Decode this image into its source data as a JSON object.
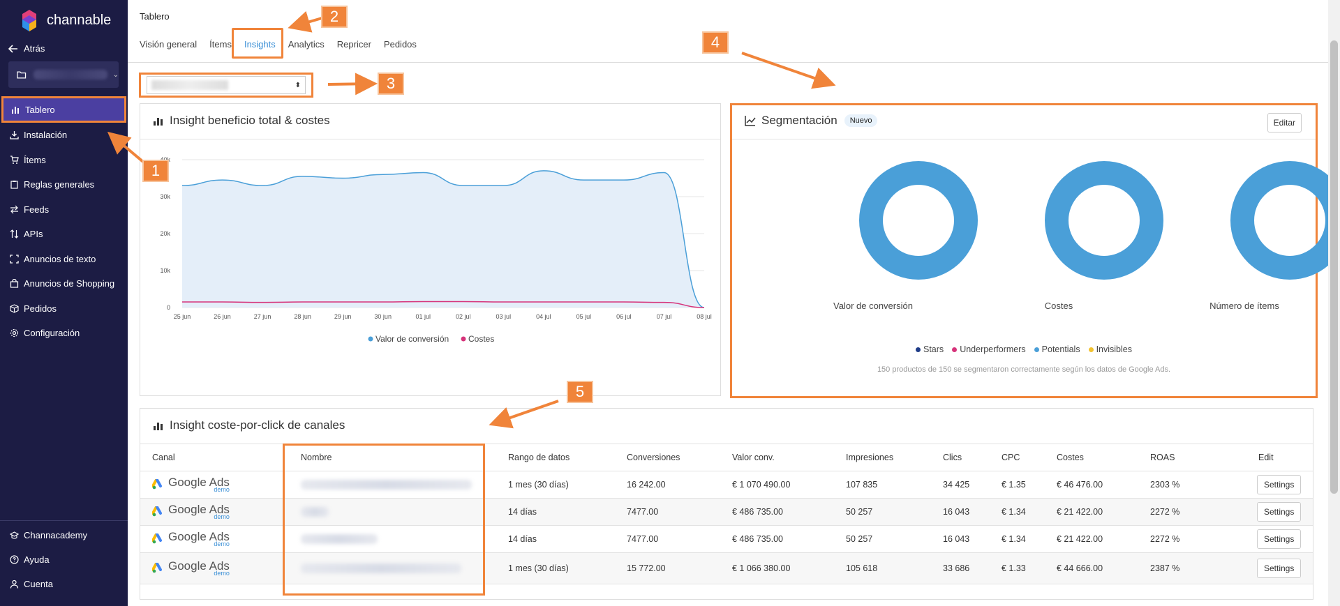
{
  "brand": {
    "name": "channable",
    "accent": "#f0843a",
    "sidebar_bg": "#1c1c44",
    "active_bg": "#4b3fa1",
    "link": "#3a8fd6"
  },
  "sidebar": {
    "back_label": "Atrás",
    "items": [
      {
        "label": "Tablero",
        "icon": "bar-chart-icon"
      },
      {
        "label": "Instalación",
        "icon": "install-icon"
      },
      {
        "label": "Ítems",
        "icon": "cart-icon"
      },
      {
        "label": "Reglas generales",
        "icon": "clipboard-icon"
      },
      {
        "label": "Feeds",
        "icon": "swap-icon"
      },
      {
        "label": "APIs",
        "icon": "sort-icon"
      },
      {
        "label": "Anuncios de texto",
        "icon": "expand-icon"
      },
      {
        "label": "Anuncios de Shopping",
        "icon": "bag-icon"
      },
      {
        "label": "Pedidos",
        "icon": "box-icon"
      },
      {
        "label": "Configuración",
        "icon": "gear-icon"
      }
    ],
    "bottom_items": [
      {
        "label": "Channacademy",
        "icon": "graduation-icon"
      },
      {
        "label": "Ayuda",
        "icon": "help-icon"
      },
      {
        "label": "Cuenta",
        "icon": "user-icon"
      }
    ]
  },
  "header": {
    "breadcrumb": "Tablero",
    "tabs": [
      "Visión general",
      "Ítems",
      "Insights",
      "Analytics",
      "Repricer",
      "Pedidos"
    ],
    "active_tab": "Insights"
  },
  "annotations": [
    "1",
    "2",
    "3",
    "4",
    "5"
  ],
  "profit_panel": {
    "title": "Insight beneficio total & costes",
    "chart_data": {
      "type": "area",
      "x": [
        "25 jun",
        "26 jun",
        "27 jun",
        "28 jun",
        "29 jun",
        "30 jun",
        "01 jul",
        "02 jul",
        "03 jul",
        "04 jul",
        "05 jul",
        "06 jul",
        "07 jul",
        "08 jul"
      ],
      "series": [
        {
          "name": "Valor de conversión",
          "color": "#4a9fd8",
          "values": [
            33000,
            34500,
            33000,
            35500,
            35000,
            36000,
            36500,
            33000,
            33000,
            37000,
            34500,
            34500,
            36500,
            0
          ]
        },
        {
          "name": "Costes",
          "color": "#d6337a",
          "values": [
            1500,
            1500,
            1400,
            1500,
            1500,
            1500,
            1600,
            1600,
            1500,
            1500,
            1500,
            1500,
            1400,
            0
          ]
        }
      ],
      "yticks": [
        "0",
        "10k",
        "20k",
        "30k",
        "40k"
      ],
      "ylim": [
        0,
        40000
      ]
    }
  },
  "segment_panel": {
    "title": "Segmentación",
    "badge": "Nuevo",
    "edit_label": "Editar",
    "donuts": [
      "Valor de conversión",
      "Costes",
      "Número de ítems"
    ],
    "legend": [
      {
        "label": "Stars",
        "color": "#1f3c88"
      },
      {
        "label": "Underperformers",
        "color": "#d6337a"
      },
      {
        "label": "Potentials",
        "color": "#4a9fd8"
      },
      {
        "label": "Invisibles",
        "color": "#f2c230"
      }
    ],
    "note": "150 productos de 150 se segmentaron correctamente según los datos de Google Ads."
  },
  "cpc_panel": {
    "title": "Insight coste-por-click de canales",
    "columns": [
      "Canal",
      "Nombre",
      "Rango de datos",
      "Conversiones",
      "Valor conv.",
      "Impresiones",
      "Clics",
      "CPC",
      "Costes",
      "ROAS",
      "Edit"
    ],
    "channel_main": "Google Ads",
    "channel_sub": "demo",
    "settings_label": "Settings",
    "rows": [
      {
        "range": "1 mes (30 días)",
        "conv": "16 242.00",
        "value": "€ 1 070 490.00",
        "impr": "107 835",
        "clicks": "34 425",
        "cpc": "€ 1.35",
        "costs": "€ 46 476.00",
        "roas": "2303 %"
      },
      {
        "range": "14 días",
        "conv": "7477.00",
        "value": "€ 486 735.00",
        "impr": "50 257",
        "clicks": "16 043",
        "cpc": "€ 1.34",
        "costs": "€ 21 422.00",
        "roas": "2272 %"
      },
      {
        "range": "14 días",
        "conv": "7477.00",
        "value": "€ 486 735.00",
        "impr": "50 257",
        "clicks": "16 043",
        "cpc": "€ 1.34",
        "costs": "€ 21 422.00",
        "roas": "2272 %"
      },
      {
        "range": "1 mes (30 días)",
        "conv": "15 772.00",
        "value": "€ 1 066 380.00",
        "impr": "105 618",
        "clicks": "33 686",
        "cpc": "€ 1.33",
        "costs": "€ 44 666.00",
        "roas": "2387 %"
      }
    ]
  }
}
